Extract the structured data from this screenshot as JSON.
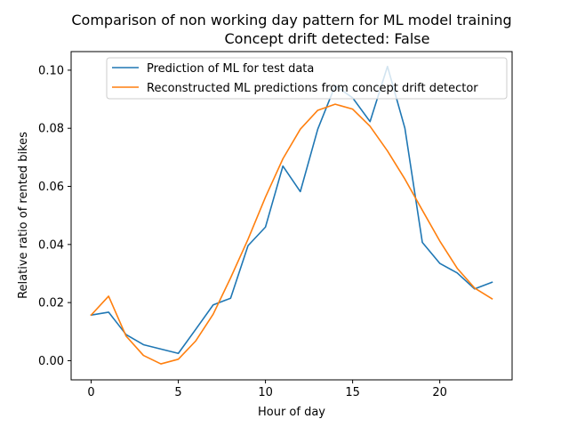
{
  "chart_data": {
    "type": "line",
    "title": "Comparison of non working day pattern for ML model training",
    "subtitle": "Concept drift detected: False",
    "xlabel": "Hour of day",
    "ylabel": "Relative ratio of rented bikes",
    "xlim": [
      -1.15,
      24.15
    ],
    "ylim": [
      -0.0066,
      0.1064
    ],
    "xticks": [
      0,
      5,
      10,
      15,
      20
    ],
    "yticks": [
      0.0,
      0.02,
      0.04,
      0.06,
      0.08,
      0.1
    ],
    "ytick_labels": [
      "0.00",
      "0.02",
      "0.04",
      "0.06",
      "0.08",
      "0.10"
    ],
    "grid": false,
    "legend_position": "top-right",
    "x": [
      0,
      1,
      2,
      3,
      4,
      5,
      6,
      7,
      8,
      9,
      10,
      11,
      12,
      13,
      14,
      15,
      16,
      17,
      18,
      19,
      20,
      21,
      22,
      23
    ],
    "series": [
      {
        "name": "Prediction of ML for test data",
        "color": "#1f77b4",
        "values": [
          0.0157,
          0.0167,
          0.009,
          0.0055,
          0.004,
          0.0025,
          0.0108,
          0.0192,
          0.0215,
          0.0396,
          0.046,
          0.067,
          0.0582,
          0.0797,
          0.0947,
          0.0905,
          0.0823,
          0.1013,
          0.08,
          0.0407,
          0.0335,
          0.0302,
          0.0247,
          0.027
        ]
      },
      {
        "name": "Reconstructed ML predictions from concept drift detector",
        "color": "#ff7f0e",
        "values": [
          0.0157,
          0.0222,
          0.0085,
          0.0018,
          -0.0011,
          0.0005,
          0.0068,
          0.016,
          0.0285,
          0.0418,
          0.0563,
          0.0695,
          0.0797,
          0.0862,
          0.0883,
          0.0866,
          0.0807,
          0.0722,
          0.0625,
          0.0518,
          0.0412,
          0.0318,
          0.025,
          0.0213
        ]
      }
    ]
  }
}
